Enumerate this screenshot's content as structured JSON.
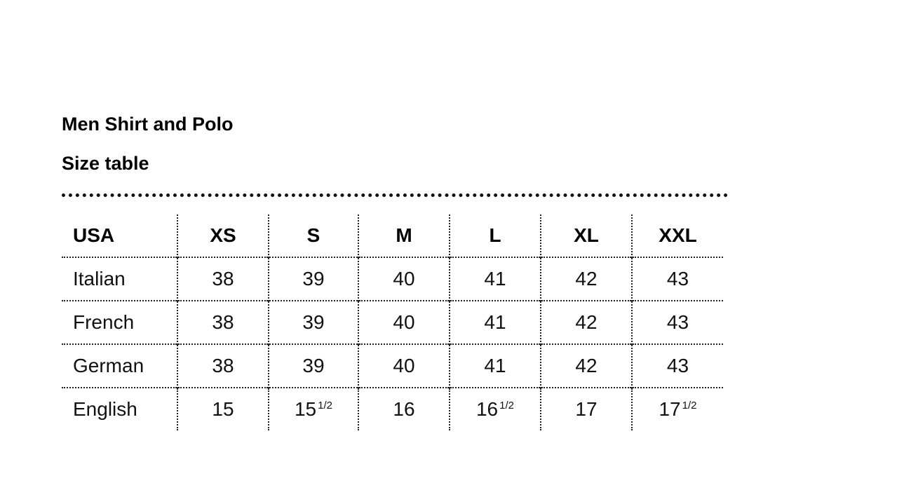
{
  "title": "Men Shirt and Polo",
  "subtitle": "Size table",
  "table": {
    "header": [
      "USA",
      "XS",
      "S",
      "M",
      "L",
      "XL",
      "XXL"
    ],
    "rows": [
      {
        "label": "Italian",
        "cells": [
          {
            "v": "38"
          },
          {
            "v": "39"
          },
          {
            "v": "40"
          },
          {
            "v": "41"
          },
          {
            "v": "42"
          },
          {
            "v": "43"
          }
        ]
      },
      {
        "label": "French",
        "cells": [
          {
            "v": "38"
          },
          {
            "v": "39"
          },
          {
            "v": "40"
          },
          {
            "v": "41"
          },
          {
            "v": "42"
          },
          {
            "v": "43"
          }
        ]
      },
      {
        "label": "German",
        "cells": [
          {
            "v": "38"
          },
          {
            "v": "39"
          },
          {
            "v": "40"
          },
          {
            "v": "41"
          },
          {
            "v": "42"
          },
          {
            "v": "43"
          }
        ]
      },
      {
        "label": "English",
        "cells": [
          {
            "v": "15"
          },
          {
            "v": "15",
            "sup": "1/2"
          },
          {
            "v": "16"
          },
          {
            "v": "16",
            "sup": "1/2"
          },
          {
            "v": "17"
          },
          {
            "v": "17",
            "sup": "1/2"
          }
        ]
      }
    ]
  }
}
